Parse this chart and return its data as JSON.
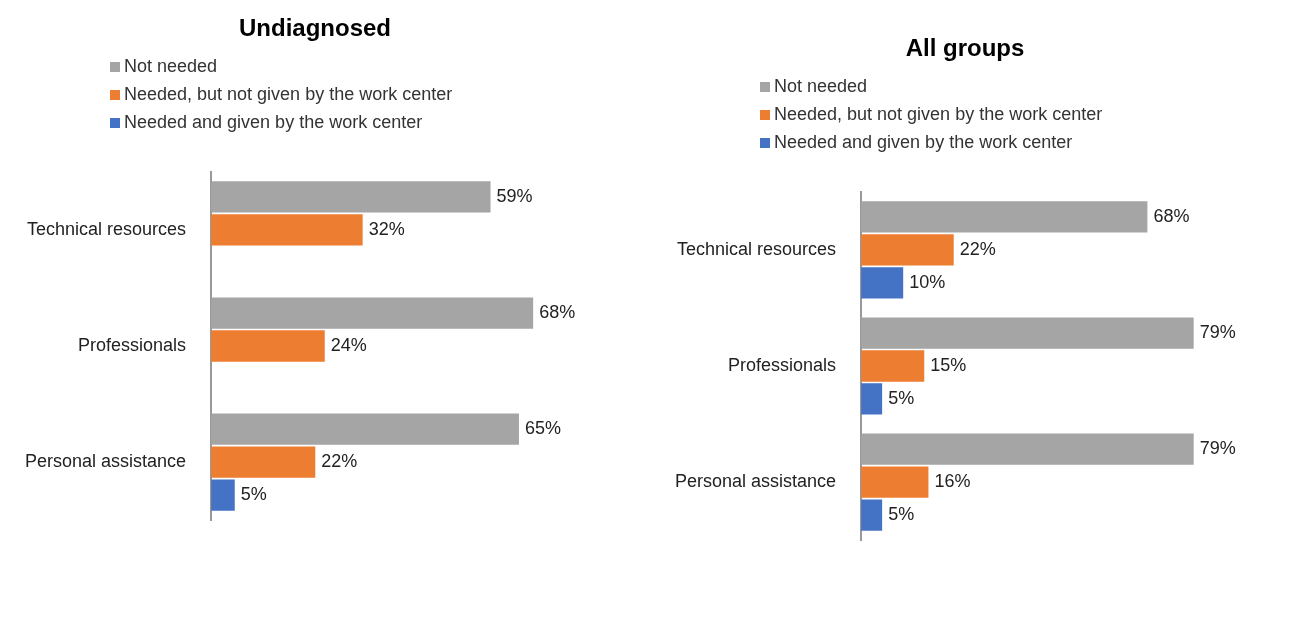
{
  "chart_data": [
    {
      "type": "bar",
      "orientation": "horizontal",
      "title": "Undiagnosed",
      "categories": [
        "Technical resources",
        "Professionals",
        "Personal assistance"
      ],
      "series": [
        {
          "name": "Not needed",
          "color": "#a5a5a5",
          "values": [
            59,
            68,
            65
          ],
          "value_labels": [
            "59%",
            "68%",
            "65%"
          ]
        },
        {
          "name": "Needed, but not given by the work center",
          "color": "#ed7d31",
          "values": [
            32,
            24,
            22
          ],
          "value_labels": [
            "32%",
            "24%",
            "22%"
          ]
        },
        {
          "name": "Needed and given by the work center",
          "color": "#4472c4",
          "values": [
            null,
            null,
            5
          ],
          "value_labels": [
            null,
            null,
            "5%"
          ]
        }
      ],
      "legend": "top left",
      "grid": false
    },
    {
      "type": "bar",
      "orientation": "horizontal",
      "title": "All groups",
      "categories": [
        "Technical resources",
        "Professionals",
        "Personal assistance"
      ],
      "series": [
        {
          "name": "Not needed",
          "color": "#a5a5a5",
          "values": [
            68,
            79,
            79
          ],
          "value_labels": [
            "68%",
            "79%",
            "79%"
          ]
        },
        {
          "name": "Needed, but not given by the work center",
          "color": "#ed7d31",
          "values": [
            22,
            15,
            16
          ],
          "value_labels": [
            "22%",
            "15%",
            "16%"
          ]
        },
        {
          "name": "Needed and given by the work center",
          "color": "#4472c4",
          "values": [
            10,
            5,
            5
          ],
          "value_labels": [
            "10%",
            "5%",
            "5%"
          ]
        }
      ],
      "legend": "top left",
      "grid": false
    }
  ]
}
